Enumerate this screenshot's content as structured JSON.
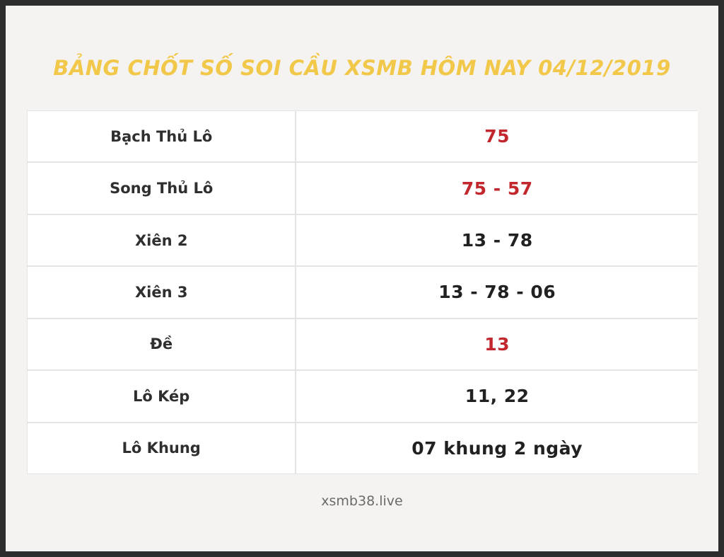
{
  "header": {
    "title": "BẢNG CHỐT SỐ SOI CẦU XSMB HÔM NAY 04/12/2019"
  },
  "table": {
    "rows": [
      {
        "label": "Bạch Thủ Lô",
        "value": "75",
        "value_color": "red"
      },
      {
        "label": "Song Thủ Lô",
        "value": "75 - 57",
        "value_color": "red"
      },
      {
        "label": "Xiên 2",
        "value": "13 - 78",
        "value_color": "dark"
      },
      {
        "label": "Xiên 3",
        "value": "13 - 78 - 06",
        "value_color": "dark"
      },
      {
        "label": "Đề",
        "value": "13",
        "value_color": "red"
      },
      {
        "label": "Lô Kép",
        "value": "11, 22",
        "value_color": "dark"
      },
      {
        "label": "Lô Khung",
        "value": "07 khung 2 ngày",
        "value_color": "dark"
      }
    ]
  },
  "footer": {
    "site": "xsmb38.live"
  },
  "colors": {
    "title_gold": "#f2c84b",
    "value_red": "#c1272d",
    "value_dark": "#212121",
    "label_dark": "#2f2f2f",
    "frame_border": "#2d2d2d",
    "page_background": "#f4f3f1",
    "grid_line": "#e4e4e4"
  }
}
